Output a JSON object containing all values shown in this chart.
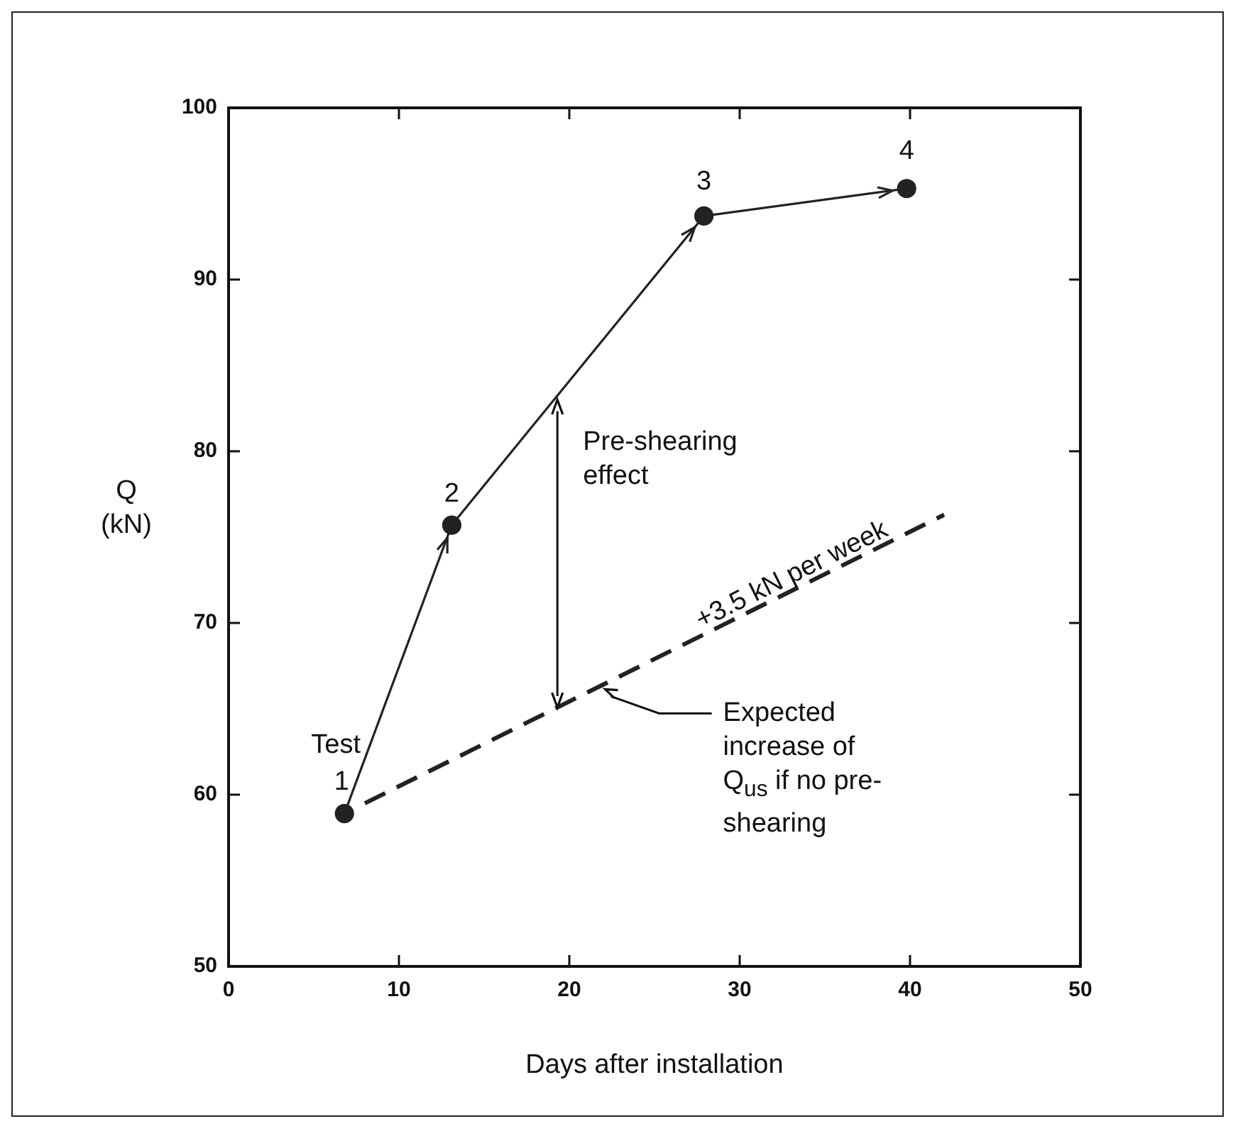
{
  "chart_data": {
    "type": "line",
    "xlabel": "Days after installation",
    "ylabel": "Q (kN)",
    "xlim": [
      0,
      50
    ],
    "xticks": [
      0,
      10,
      20,
      30,
      40,
      50
    ],
    "ylim": [
      50,
      100
    ],
    "yticks": [
      50,
      60,
      70,
      80,
      90,
      100
    ],
    "grid": false,
    "legend": false,
    "series": [
      {
        "type": "line",
        "x": [
          6.8,
          13.1,
          27.9,
          39.8
        ],
        "values": [
          58.9,
          75.7,
          93.7,
          95.3
        ],
        "color": "#222222",
        "marker": "circle",
        "line_style": "solid"
      },
      {
        "type": "line",
        "x": [
          8,
          42
        ],
        "values": [
          59.5,
          76.3
        ],
        "color": "#222222",
        "marker": "none",
        "line_style": "dashed"
      }
    ],
    "annotations": [
      {
        "text": "1",
        "x": 6.8,
        "y": 58.9
      },
      {
        "text": "2",
        "x": 13.1,
        "y": 75.7
      },
      {
        "text": "3",
        "x": 27.9,
        "y": 93.7
      },
      {
        "text": "4",
        "x": 39.8,
        "y": 95.3
      },
      {
        "text": "Test",
        "x": 6.8,
        "y": 58.9
      },
      {
        "text": "Pre-shearing effect",
        "x": 19.3,
        "y": 83
      },
      "+3.5 kN per week",
      "Expected increase of Q$_{us}$ if no pre-shearing"
    ]
  }
}
